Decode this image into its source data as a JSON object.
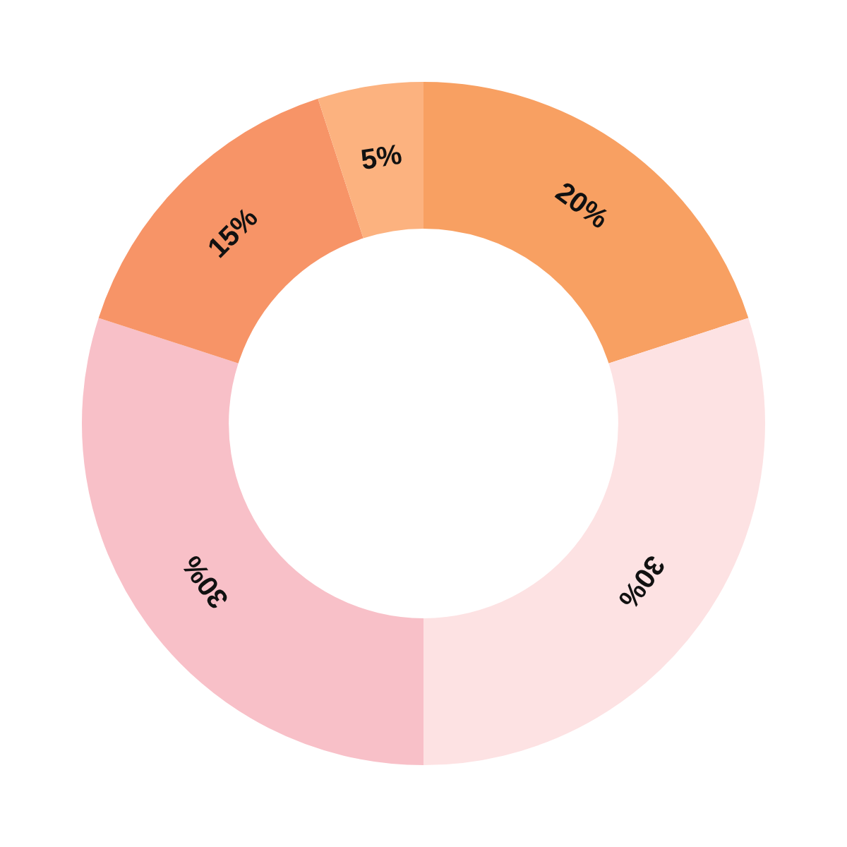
{
  "chart_data": {
    "type": "donut",
    "categories": [
      null,
      null,
      null,
      null,
      null
    ],
    "values": [
      20,
      30,
      30,
      15,
      5
    ],
    "colors": [
      "#f8a062",
      "#fde2e3",
      "#f8c0c8",
      "#f79467",
      "#fcb27f"
    ],
    "value_labels": [
      "20%",
      "30%",
      "30%",
      "15%",
      "5%"
    ],
    "legend": false
  }
}
